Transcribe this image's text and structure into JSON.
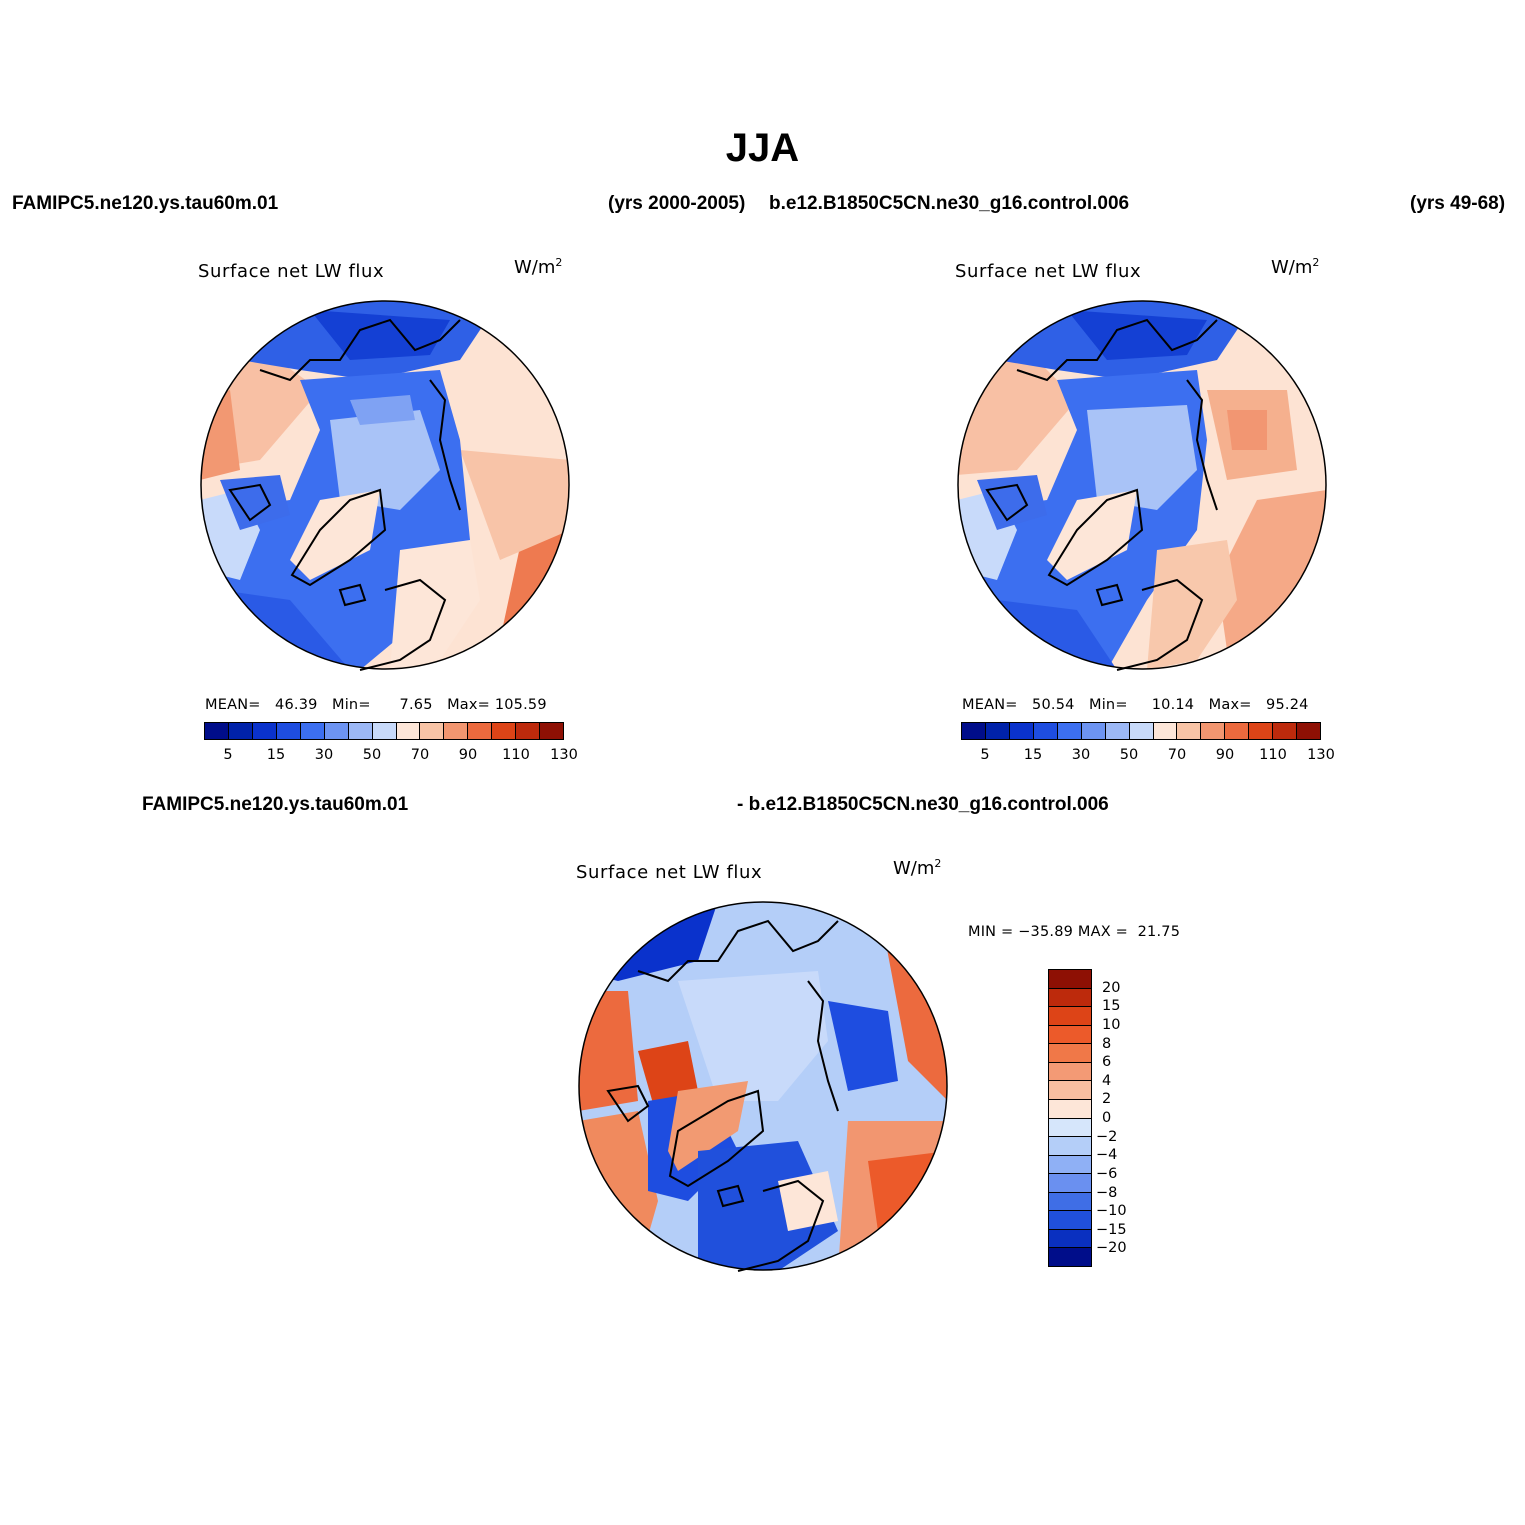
{
  "figure": {
    "title": "JJA",
    "header": {
      "left_case": "FAMIPC5.ne120.ys.tau60m.01",
      "left_years": "(yrs 2000-2005)",
      "right_case": "b.e12.B1850C5CN.ne30_g16.control.006",
      "right_years": "(yrs 49-68)"
    },
    "diff_header": {
      "left": "FAMIPC5.ne120.ys.tau60m.01",
      "right": "- b.e12.B1850C5CN.ne30_g16.control.006"
    }
  },
  "panels": [
    {
      "title": "Surface net LW flux",
      "units_base": "W/m",
      "units_exp": "2",
      "stats": {
        "mean_label": "MEAN=",
        "mean": "46.39",
        "min_label": "Min=",
        "min": "7.65",
        "max_label": "Max=",
        "max": "105.59"
      },
      "colorbar": {
        "colors": [
          "#000d8a",
          "#0022aa",
          "#0a32cc",
          "#1e4de0",
          "#3c6ff0",
          "#6d94f2",
          "#9cb8f6",
          "#c8dafa",
          "#fde6d8",
          "#f8c4a6",
          "#f29670",
          "#ec6a3e",
          "#dd4417",
          "#bd2a0c",
          "#8e1004"
        ],
        "tick_labels": [
          "5",
          "15",
          "30",
          "50",
          "70",
          "90",
          "110",
          "130"
        ]
      }
    },
    {
      "title": "Surface net LW flux",
      "units_base": "W/m",
      "units_exp": "2",
      "stats": {
        "mean_label": "MEAN=",
        "mean": "50.54",
        "min_label": "Min=",
        "min": "10.14",
        "max_label": "Max=",
        "max": "95.24"
      },
      "colorbar": {
        "colors": [
          "#000d8a",
          "#0022aa",
          "#0a32cc",
          "#1e4de0",
          "#3c6ff0",
          "#6d94f2",
          "#9cb8f6",
          "#c8dafa",
          "#fde6d8",
          "#f8c4a6",
          "#f29670",
          "#ec6a3e",
          "#dd4417",
          "#bd2a0c",
          "#8e1004"
        ],
        "tick_labels": [
          "5",
          "15",
          "30",
          "50",
          "70",
          "90",
          "110",
          "130"
        ]
      }
    },
    {
      "title": "Surface net LW flux",
      "units_base": "W/m",
      "units_exp": "2",
      "range_text": "MIN = −35.89 MAX =  21.75",
      "colorbar": {
        "colors": [
          "#8e1004",
          "#bd2a0c",
          "#dd4417",
          "#ec5a2a",
          "#f07848",
          "#f39a75",
          "#f8bea0",
          "#fde6d8",
          "#d6e6fb",
          "#b4cef8",
          "#8fb0f5",
          "#6a90f0",
          "#3f6ee6",
          "#2050dc",
          "#0a30c0",
          "#000d8a"
        ],
        "tick_labels": [
          "20",
          "15",
          "10",
          "8",
          "6",
          "4",
          "2",
          "0",
          "−2",
          "−4",
          "−6",
          "−8",
          "−10",
          "−15",
          "−20"
        ]
      }
    }
  ]
}
